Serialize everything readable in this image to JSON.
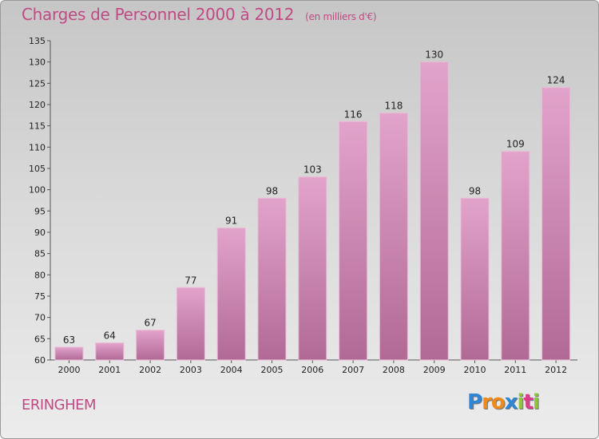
{
  "chart_data": {
    "type": "bar",
    "title": "Charges de Personnel 2000 à 2012",
    "subtitle": "(en milliers d'€)",
    "categories": [
      "2000",
      "2001",
      "2002",
      "2003",
      "2004",
      "2005",
      "2006",
      "2007",
      "2008",
      "2009",
      "2010",
      "2011",
      "2012"
    ],
    "values": [
      63,
      64,
      67,
      77,
      91,
      98,
      103,
      116,
      118,
      130,
      98,
      109,
      124
    ],
    "ylim": [
      60,
      135
    ],
    "yticks": [
      60,
      65,
      70,
      75,
      80,
      85,
      90,
      95,
      100,
      105,
      110,
      115,
      120,
      125,
      130,
      135
    ],
    "grid": false,
    "bar_color": "#d98fbb"
  },
  "footer": {
    "commune": "ERINGHEM",
    "logo_letters": [
      {
        "ch": "P",
        "color": "#2f86d4"
      },
      {
        "ch": "r",
        "color": "#f08a1c"
      },
      {
        "ch": "o",
        "color": "#f08a1c"
      },
      {
        "ch": "x",
        "color": "#2f86d4"
      },
      {
        "ch": "i",
        "color": "#8cc63f"
      },
      {
        "ch": "t",
        "color": "#e03a8b"
      },
      {
        "ch": "i",
        "color": "#8cc63f"
      }
    ]
  }
}
